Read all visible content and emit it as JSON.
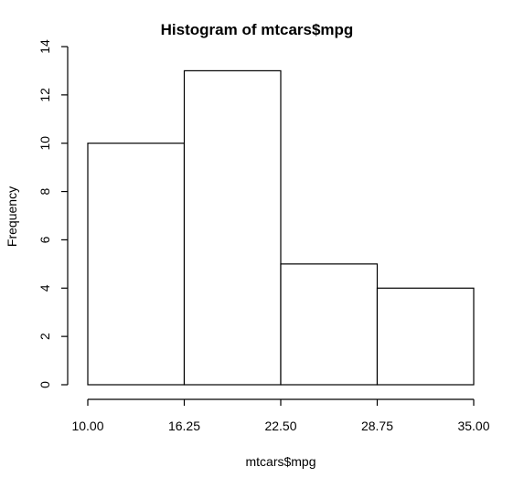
{
  "chart_data": {
    "type": "bar",
    "title": "Histogram of mtcars$mpg",
    "xlabel": "mtcars$mpg",
    "ylabel": "Frequency",
    "bins": [
      {
        "start": 10.0,
        "end": 16.25,
        "count": 10
      },
      {
        "start": 16.25,
        "end": 22.5,
        "count": 13
      },
      {
        "start": 22.5,
        "end": 28.75,
        "count": 5
      },
      {
        "start": 28.75,
        "end": 35.0,
        "count": 4
      }
    ],
    "xlim": [
      10,
      35
    ],
    "ylim": [
      0,
      14
    ],
    "x_ticks": [
      "10.00",
      "16.25",
      "22.50",
      "28.75",
      "35.00"
    ],
    "x_tick_values": [
      10.0,
      16.25,
      22.5,
      28.75,
      35.0
    ],
    "y_ticks": [
      0,
      2,
      4,
      6,
      8,
      10,
      12,
      14
    ],
    "colors": {
      "bar_fill": "#ffffff",
      "bar_stroke": "#000000"
    },
    "grid": false
  }
}
